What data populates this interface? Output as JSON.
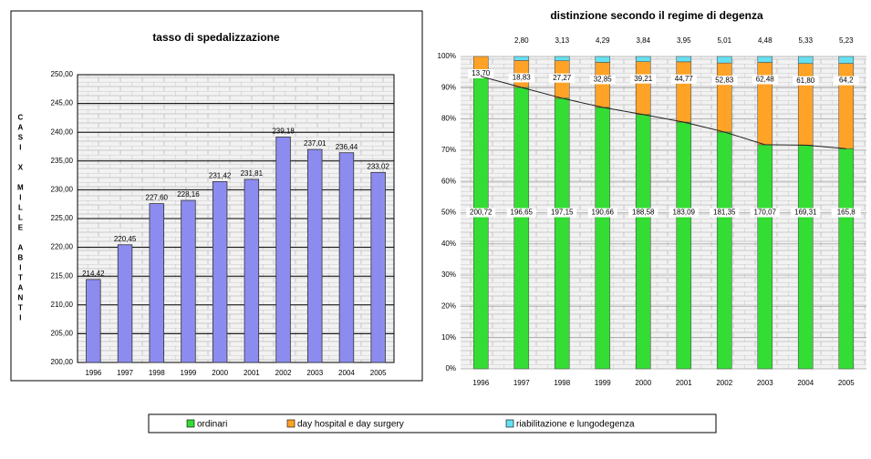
{
  "chart_data": [
    {
      "type": "bar",
      "title": "tasso di spedalizzazione",
      "y_label": "CASI X MILLE ABITANTI",
      "categories": [
        "1996",
        "1997",
        "1998",
        "1999",
        "2000",
        "2001",
        "2002",
        "2003",
        "2004",
        "2005"
      ],
      "values": [
        214.42,
        220.45,
        227.6,
        228.16,
        231.42,
        231.81,
        239.18,
        237.01,
        236.44,
        233.02
      ],
      "value_labels": [
        "214,42",
        "220,45",
        "227,60",
        "228,16",
        "231,42",
        "231,81",
        "239,18",
        "237,01",
        "236,44",
        "233,02"
      ],
      "color": "#8c8cf0",
      "ylim": [
        200,
        250
      ],
      "yticks": [
        {
          "value": 200,
          "label": "200,00"
        },
        {
          "value": 205,
          "label": "205,00"
        },
        {
          "value": 210,
          "label": "210,00"
        },
        {
          "value": 215,
          "label": "215,00"
        },
        {
          "value": 220,
          "label": "220,00"
        },
        {
          "value": 225,
          "label": "225,00"
        },
        {
          "value": 230,
          "label": "230,00"
        },
        {
          "value": 235,
          "label": "235,00"
        },
        {
          "value": 240,
          "label": "240,00"
        },
        {
          "value": 245,
          "label": "245,00"
        },
        {
          "value": 250,
          "label": "250,00"
        }
      ],
      "grid": true
    },
    {
      "type": "stacked_percent_bar",
      "title": "distinzione secondo il regime di degenza",
      "categories": [
        "1996",
        "1997",
        "1998",
        "1999",
        "2000",
        "2001",
        "2002",
        "2003",
        "2004",
        "2005"
      ],
      "series": [
        {
          "name": "ordinari",
          "color": "#33dd33",
          "values": [
            200.72,
            196.65,
            197.15,
            190.66,
            188.58,
            183.09,
            181.35,
            170.07,
            169.31,
            165.8
          ],
          "value_labels": [
            "200,72",
            "196,65",
            "197,15",
            "190,66",
            "188,58",
            "183,09",
            "181,35",
            "170,07",
            "169,31",
            "165,8"
          ]
        },
        {
          "name": "day hospital e day surgery",
          "color": "#ffa326",
          "values": [
            13.7,
            18.83,
            27.27,
            32.85,
            39.21,
            44.77,
            52.83,
            62.48,
            61.8,
            64.2
          ],
          "value_labels": [
            "13,70",
            "18,83",
            "27,27",
            "32,85",
            "39,21",
            "44,77",
            "52,83",
            "62,48",
            "61,80",
            "64,2"
          ]
        },
        {
          "name": "riabilitazione e lungodegenza",
          "color": "#66e0f0",
          "values": [
            null,
            2.8,
            3.13,
            4.29,
            3.84,
            3.95,
            5.01,
            4.48,
            5.33,
            5.23
          ],
          "value_labels": [
            null,
            "2,80",
            "3,13",
            "4,29",
            "3,84",
            "3,95",
            "5,01",
            "4,48",
            "5,33",
            "5,23"
          ]
        }
      ],
      "ylim": [
        0,
        100
      ],
      "yticks": [
        {
          "value": 0,
          "label": "0%"
        },
        {
          "value": 10,
          "label": "10%"
        },
        {
          "value": 20,
          "label": "20%"
        },
        {
          "value": 30,
          "label": "30%"
        },
        {
          "value": 40,
          "label": "40%"
        },
        {
          "value": 50,
          "label": "50%"
        },
        {
          "value": 60,
          "label": "60%"
        },
        {
          "value": 70,
          "label": "70%"
        },
        {
          "value": 80,
          "label": "80%"
        },
        {
          "value": 90,
          "label": "90%"
        },
        {
          "value": 100,
          "label": "100%"
        }
      ],
      "grid": true,
      "legend": "bottom"
    }
  ]
}
